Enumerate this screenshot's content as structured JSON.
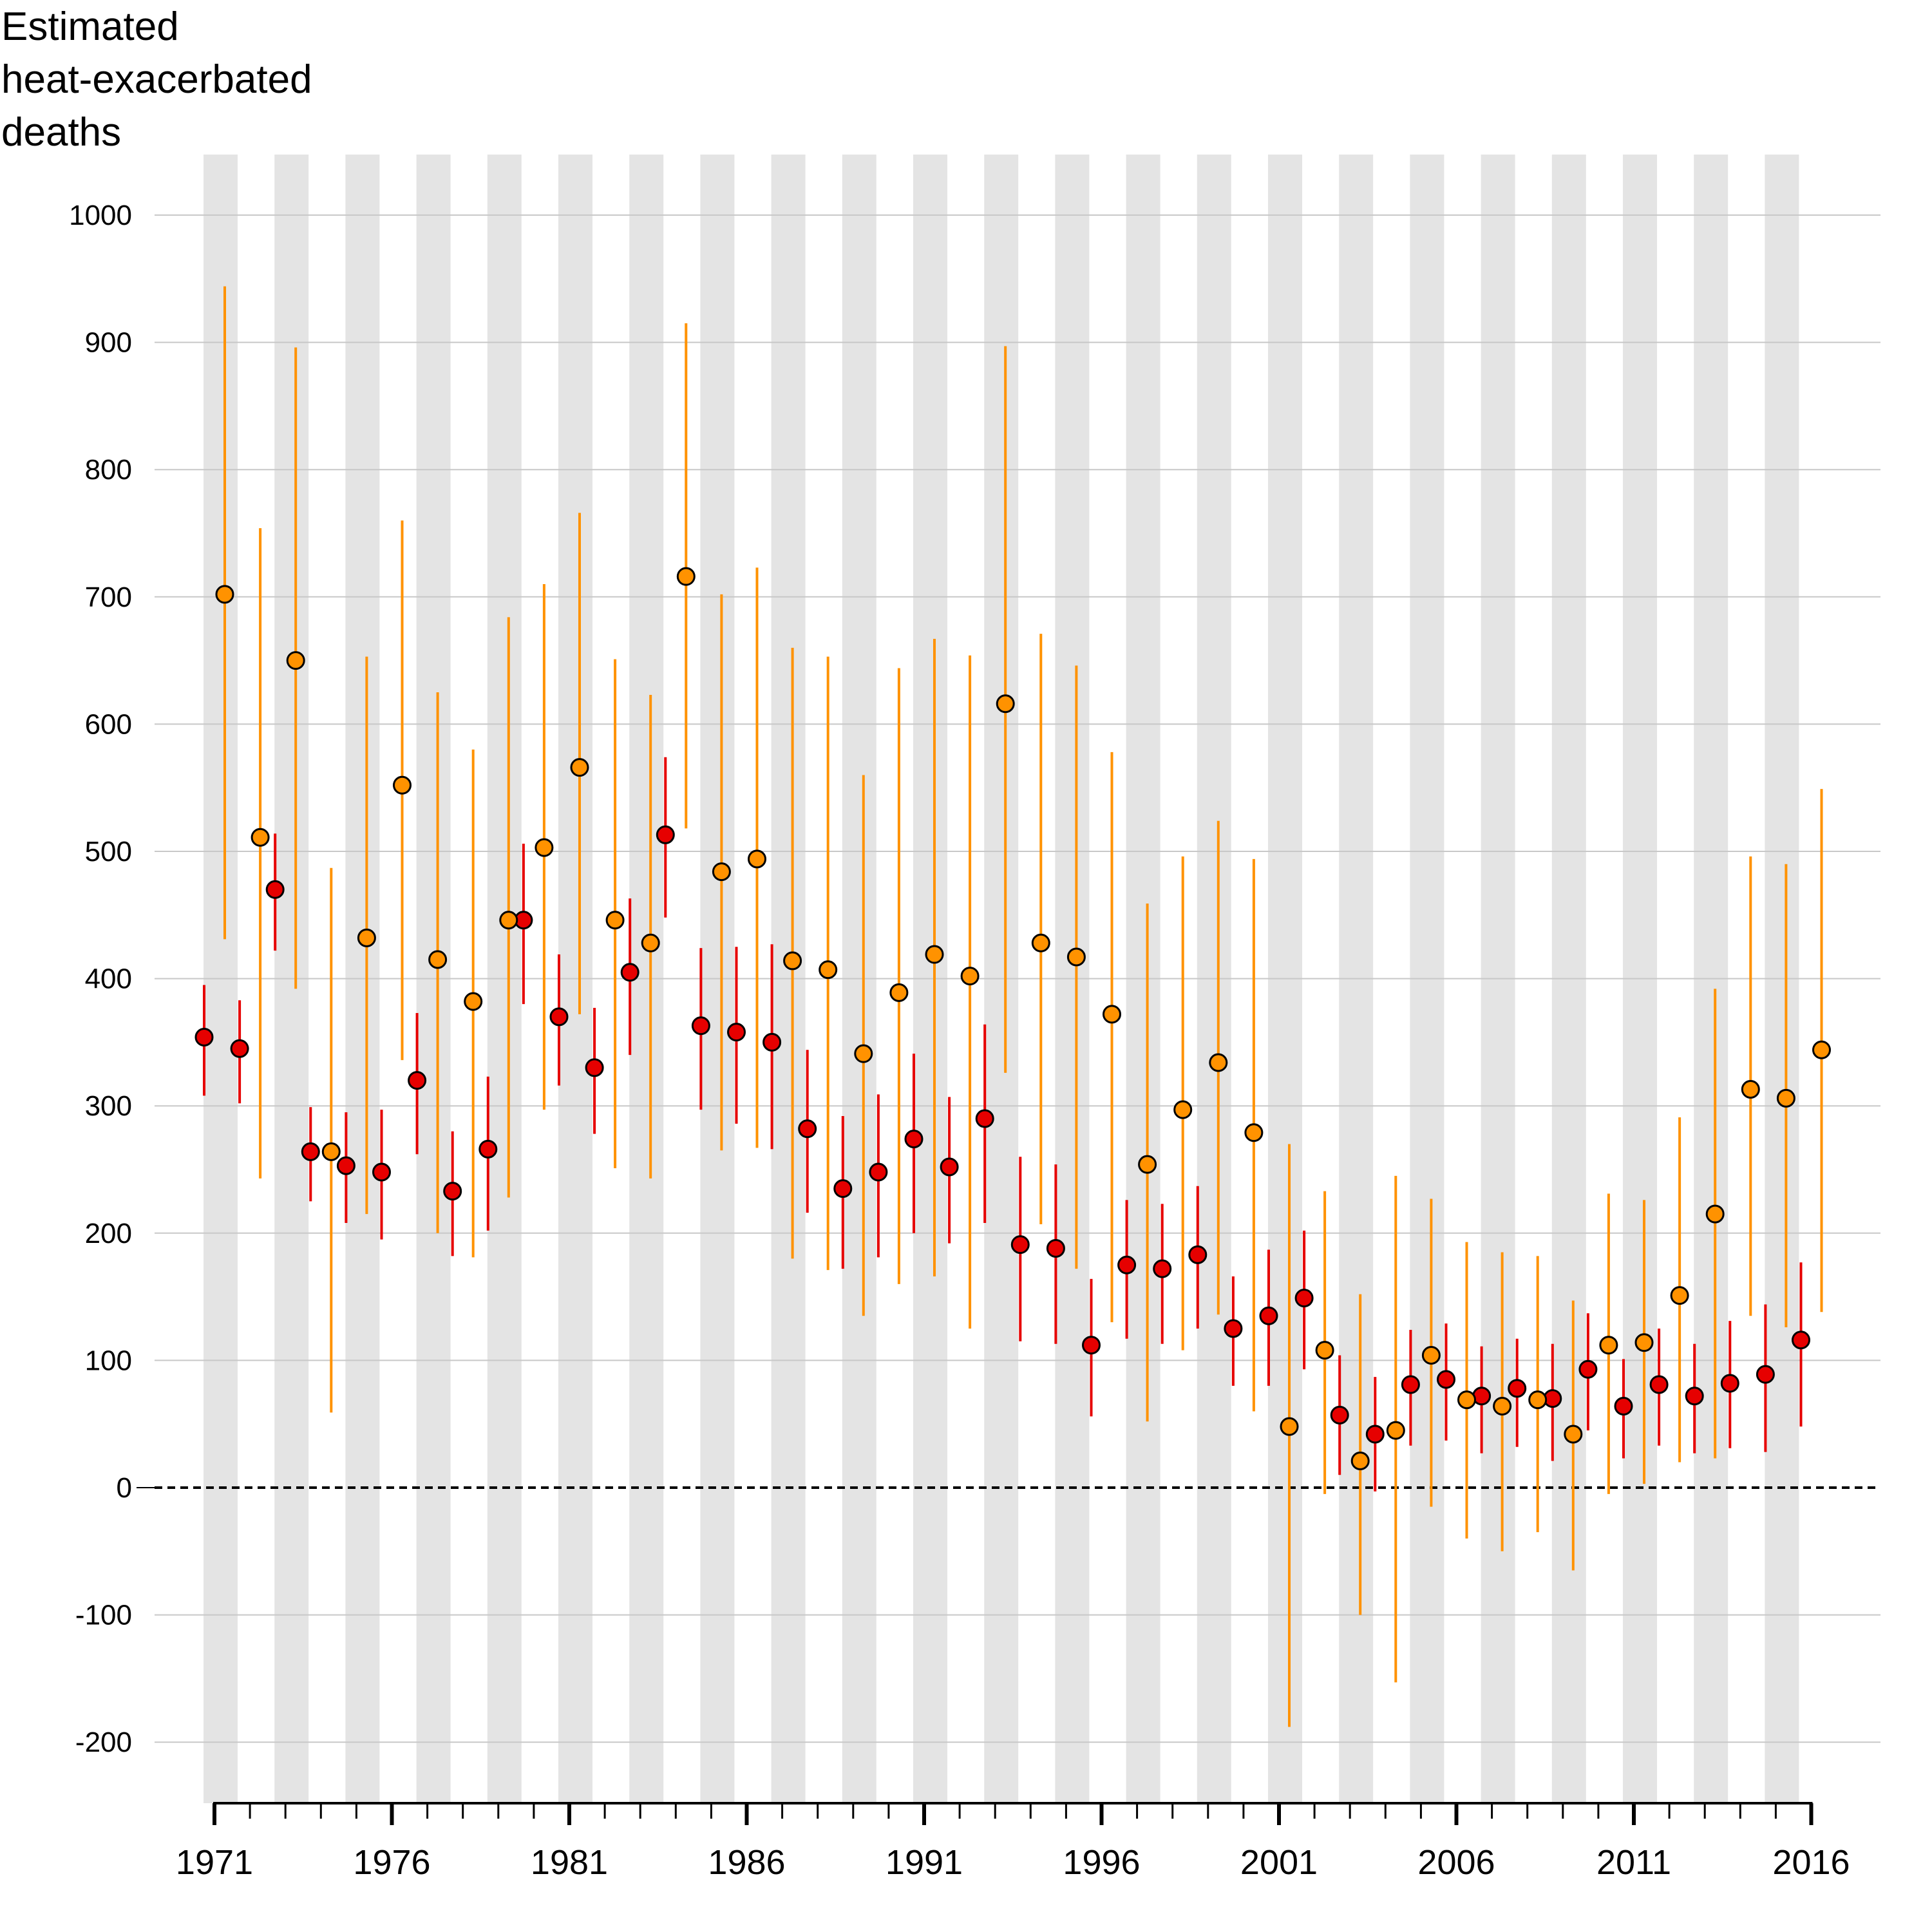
{
  "chart_data": {
    "type": "scatter",
    "ylabel_lines": [
      "Estimated",
      "heat-exacerbated",
      "deaths"
    ],
    "x": [
      1971,
      1972,
      1973,
      1974,
      1975,
      1976,
      1977,
      1978,
      1979,
      1980,
      1981,
      1982,
      1983,
      1984,
      1985,
      1986,
      1987,
      1988,
      1989,
      1990,
      1991,
      1992,
      1993,
      1994,
      1995,
      1996,
      1997,
      1998,
      1999,
      2000,
      2001,
      2002,
      2003,
      2004,
      2005,
      2006,
      2007,
      2008,
      2009,
      2010,
      2011,
      2012,
      2013,
      2014,
      2015,
      2016
    ],
    "xticks": [
      1971,
      1976,
      1981,
      1986,
      1991,
      1996,
      2001,
      2006,
      2011,
      2016
    ],
    "yticks": [
      -200,
      -100,
      0,
      100,
      200,
      300,
      400,
      500,
      600,
      700,
      800,
      900,
      1000
    ],
    "ylim": [
      -250,
      1050
    ],
    "xlim": [
      1970.1,
      1972.0
    ],
    "grid": true,
    "reference_line": 0,
    "series": [
      {
        "color": "#e60000",
        "values": [
          354,
          345,
          470,
          264,
          253,
          248,
          320,
          233,
          266,
          446,
          370,
          330,
          405,
          513,
          363,
          358,
          350,
          282,
          235,
          248,
          274,
          252,
          290,
          191,
          188,
          112,
          175,
          172,
          183,
          125,
          135,
          149,
          57,
          42,
          81,
          85,
          72,
          78,
          70,
          93,
          64,
          81,
          72,
          82,
          89,
          116
        ],
        "lower": [
          308,
          302,
          422,
          225,
          208,
          195,
          262,
          182,
          202,
          380,
          316,
          278,
          340,
          448,
          297,
          286,
          266,
          216,
          172,
          181,
          200,
          192,
          208,
          115,
          113,
          56,
          117,
          113,
          125,
          80,
          80,
          93,
          10,
          -3,
          33,
          37,
          27,
          32,
          21,
          45,
          23,
          33,
          27,
          31,
          28,
          48
        ],
        "upper": [
          395,
          383,
          514,
          299,
          295,
          297,
          373,
          280,
          323,
          506,
          419,
          377,
          463,
          574,
          424,
          425,
          427,
          344,
          292,
          309,
          341,
          307,
          364,
          260,
          254,
          164,
          226,
          223,
          237,
          166,
          187,
          202,
          104,
          87,
          124,
          129,
          111,
          117,
          113,
          137,
          101,
          125,
          113,
          131,
          144,
          177
        ]
      },
      {
        "color": "#ff9200",
        "values": [
          702,
          511,
          650,
          264,
          432,
          552,
          415,
          382,
          446,
          503,
          566,
          446,
          428,
          716,
          484,
          494,
          414,
          407,
          341,
          389,
          419,
          402,
          616,
          428,
          417,
          372,
          254,
          297,
          334,
          279,
          48,
          108,
          21,
          45,
          104,
          69,
          64,
          69,
          42,
          112,
          114,
          151,
          215,
          313,
          306,
          344
        ],
        "lower": [
          431,
          243,
          392,
          59,
          215,
          336,
          200,
          181,
          228,
          297,
          372,
          251,
          243,
          518,
          265,
          267,
          180,
          171,
          135,
          160,
          166,
          125,
          326,
          207,
          172,
          130,
          52,
          108,
          136,
          60,
          -188,
          -5,
          -100,
          -153,
          -15,
          -40,
          -50,
          -35,
          -65,
          -5,
          3,
          20,
          23,
          135,
          126,
          138
        ],
        "upper": [
          944,
          754,
          896,
          487,
          653,
          760,
          625,
          580,
          684,
          710,
          766,
          651,
          623,
          915,
          702,
          723,
          660,
          653,
          560,
          644,
          667,
          654,
          897,
          671,
          646,
          578,
          459,
          496,
          524,
          494,
          270,
          233,
          152,
          245,
          227,
          193,
          185,
          182,
          147,
          231,
          226,
          291,
          392,
          496,
          490,
          549
        ]
      }
    ]
  }
}
